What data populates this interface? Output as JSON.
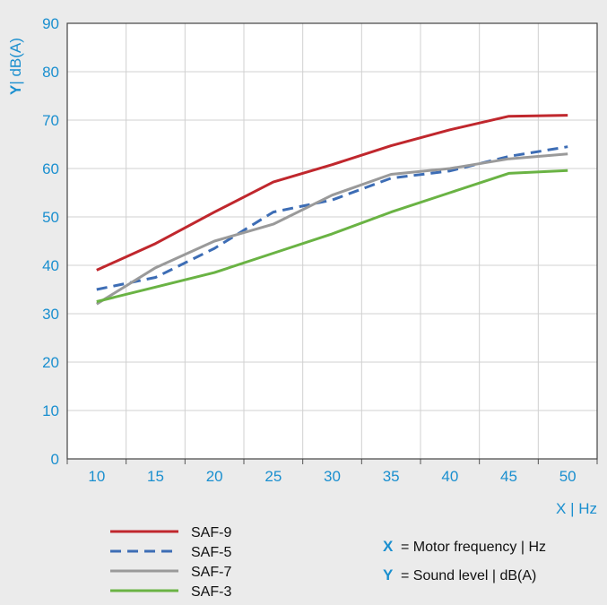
{
  "chart_data": {
    "type": "line",
    "ylabel_key": "Y",
    "ylabel_unit": "| dB(A)",
    "xlabel": "X | Hz",
    "x": [
      10,
      15,
      20,
      25,
      30,
      35,
      40,
      45,
      50
    ],
    "xlim": [
      7.5,
      52.5
    ],
    "ylim": [
      0,
      90
    ],
    "yticks": [
      0,
      10,
      20,
      30,
      40,
      50,
      60,
      70,
      80,
      90
    ],
    "grid": true,
    "series": [
      {
        "name": "SAF-9",
        "color": "#c0272d",
        "dash": "solid",
        "values": [
          39,
          44.5,
          51,
          57.2,
          60.8,
          64.7,
          68,
          70.8,
          71
        ]
      },
      {
        "name": "SAF-5",
        "color": "#3d6db5",
        "dash": "dashed",
        "values": [
          35,
          37.5,
          43.5,
          51,
          53.5,
          58,
          59.5,
          62.5,
          64.5
        ]
      },
      {
        "name": "SAF-7",
        "color": "#9a9a9a",
        "dash": "solid",
        "values": [
          32,
          39.5,
          45,
          48.5,
          54.5,
          58.8,
          60,
          62,
          63
        ]
      },
      {
        "name": "SAF-3",
        "color": "#6ab344",
        "dash": "solid",
        "values": [
          32.5,
          35.5,
          38.5,
          42.5,
          46.5,
          51,
          55,
          59,
          59.6
        ]
      }
    ],
    "legend_placement": "bottom-left",
    "axis_descriptions": [
      {
        "key": "X",
        "text": "= Motor frequency | Hz"
      },
      {
        "key": "Y",
        "text": "= Sound level | dB(A)"
      }
    ]
  }
}
